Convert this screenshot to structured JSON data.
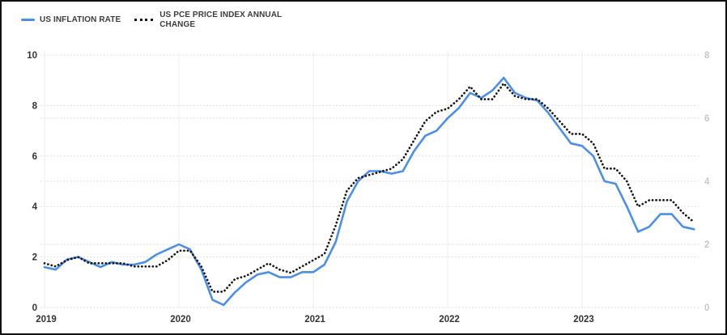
{
  "legend": {
    "items": [
      "US INFLATION RATE",
      "US PCE PRICE INDEX ANNUAL CHANGE"
    ]
  },
  "chart_data": {
    "type": "line",
    "title": "",
    "frequency": "monthly",
    "start_month": "2019-01",
    "end_month": "2023-11",
    "x_labels": [
      "2019",
      "2020",
      "2021",
      "2022",
      "2023"
    ],
    "left_axis": {
      "range": [
        0,
        10
      ],
      "ticks": [
        0,
        2,
        4,
        6,
        8,
        10
      ],
      "label_color": "#333333"
    },
    "right_axis": {
      "range": [
        0,
        8
      ],
      "ticks": [
        0,
        2,
        4,
        6,
        8
      ],
      "label_color": "#c8c8c8"
    },
    "grid": {
      "horizontal": "dotted",
      "vertical": "solid"
    },
    "legend_position": "top-left",
    "series": [
      {
        "name": "US INFLATION RATE",
        "axis": "left",
        "style": "solid",
        "color": "#4a8fe8",
        "values": [
          1.6,
          1.5,
          1.9,
          2.0,
          1.8,
          1.6,
          1.8,
          1.7,
          1.7,
          1.8,
          2.1,
          2.3,
          2.5,
          2.3,
          1.5,
          0.3,
          0.1,
          0.6,
          1.0,
          1.3,
          1.4,
          1.2,
          1.2,
          1.4,
          1.4,
          1.7,
          2.6,
          4.2,
          5.0,
          5.4,
          5.4,
          5.3,
          5.4,
          6.2,
          6.8,
          7.0,
          7.5,
          7.9,
          8.5,
          8.3,
          8.6,
          9.1,
          8.5,
          8.3,
          8.2,
          7.7,
          7.1,
          6.5,
          6.4,
          6.0,
          5.0,
          4.9,
          4.0,
          3.0,
          3.2,
          3.7,
          3.7,
          3.2,
          3.1
        ]
      },
      {
        "name": "US PCE PRICE INDEX ANNUAL CHANGE",
        "axis": "right",
        "style": "dotted",
        "color": "#161616",
        "values": [
          1.4,
          1.3,
          1.5,
          1.6,
          1.4,
          1.4,
          1.4,
          1.4,
          1.3,
          1.3,
          1.3,
          1.5,
          1.8,
          1.8,
          1.3,
          0.5,
          0.5,
          0.9,
          1.0,
          1.2,
          1.4,
          1.2,
          1.1,
          1.3,
          1.5,
          1.7,
          2.6,
          3.7,
          4.1,
          4.2,
          4.3,
          4.4,
          4.7,
          5.3,
          5.9,
          6.2,
          6.3,
          6.6,
          7.0,
          6.6,
          6.6,
          7.1,
          6.7,
          6.6,
          6.6,
          6.3,
          5.9,
          5.5,
          5.5,
          5.2,
          4.4,
          4.4,
          4.0,
          3.2,
          3.4,
          3.4,
          3.4,
          3.0,
          2.7
        ]
      }
    ]
  }
}
